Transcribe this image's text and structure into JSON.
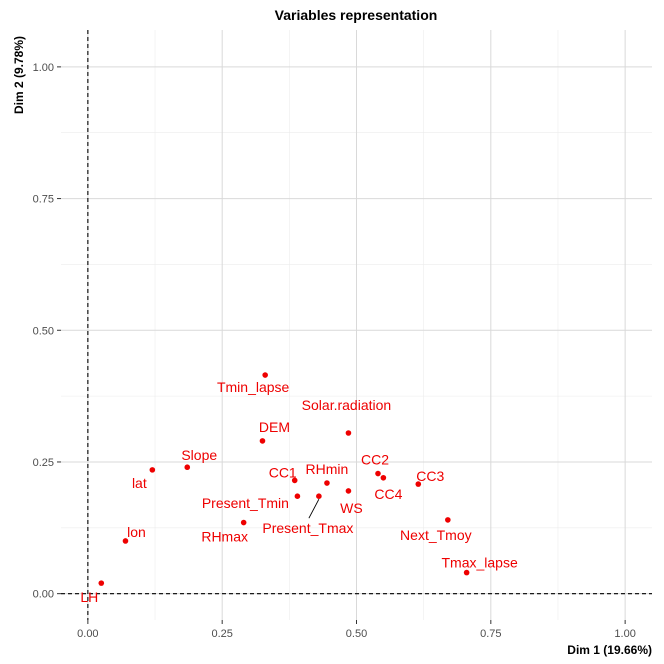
{
  "chart_data": {
    "type": "scatter",
    "title": "Variables representation",
    "xlabel": "Dim 1 (19.66%)",
    "ylabel": "Dim 2 (9.78%)",
    "xlim": [
      -0.05,
      1.05
    ],
    "ylim": [
      -0.05,
      1.07
    ],
    "x_ticks": [
      0.0,
      0.25,
      0.5,
      0.75,
      1.0
    ],
    "x_tick_labels": [
      "0.00",
      "0.25",
      "0.50",
      "0.75",
      "1.00"
    ],
    "y_ticks": [
      0.0,
      0.25,
      0.5,
      0.75,
      1.0
    ],
    "y_tick_labels": [
      "0.00",
      "0.25",
      "0.50",
      "0.75",
      "1.00"
    ],
    "grid": true,
    "reference_lines": {
      "x": 0,
      "y": 0,
      "style": "dashed"
    },
    "color": "#ee0000",
    "points": [
      {
        "label": "Tmin_lapse",
        "x": 0.33,
        "y": 0.415
      },
      {
        "label": "Solar.radiation",
        "x": 0.485,
        "y": 0.305
      },
      {
        "label": "DEM",
        "x": 0.325,
        "y": 0.29
      },
      {
        "label": "Slope",
        "x": 0.185,
        "y": 0.24
      },
      {
        "label": "lat",
        "x": 0.12,
        "y": 0.235
      },
      {
        "label": "CC1",
        "x": 0.385,
        "y": 0.215
      },
      {
        "label": "RHmin",
        "x": 0.445,
        "y": 0.21
      },
      {
        "label": "CC2",
        "x": 0.54,
        "y": 0.228
      },
      {
        "label": "CC3",
        "x": 0.615,
        "y": 0.208
      },
      {
        "label": "CC4",
        "x": 0.55,
        "y": 0.22
      },
      {
        "label": "WS",
        "x": 0.485,
        "y": 0.195
      },
      {
        "label": "Present_Tmin",
        "x": 0.39,
        "y": 0.185
      },
      {
        "label": "Present_Tmax",
        "x": 0.43,
        "y": 0.185
      },
      {
        "label": "RHmax",
        "x": 0.29,
        "y": 0.135
      },
      {
        "label": "Next_Tmoy",
        "x": 0.67,
        "y": 0.14
      },
      {
        "label": "lon",
        "x": 0.07,
        "y": 0.1
      },
      {
        "label": "Tmax_lapse",
        "x": 0.705,
        "y": 0.04
      },
      {
        "label": "LH",
        "x": 0.025,
        "y": 0.02
      }
    ]
  }
}
